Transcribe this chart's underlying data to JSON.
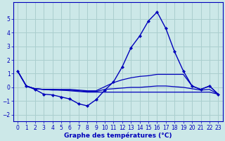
{
  "xlabel": "Graphe des températures (°C)",
  "background_color": "#cce8e8",
  "grid_color": "#aacece",
  "line_color": "#0000bb",
  "hours": [
    0,
    1,
    2,
    3,
    4,
    5,
    6,
    7,
    8,
    9,
    10,
    11,
    12,
    13,
    14,
    15,
    16,
    17,
    18,
    19,
    20,
    21,
    22,
    23
  ],
  "temp_main": [
    1.2,
    0.1,
    -0.15,
    -0.5,
    -0.55,
    -0.7,
    -0.85,
    -1.2,
    -1.35,
    -0.9,
    -0.2,
    0.4,
    1.5,
    2.9,
    3.75,
    4.85,
    5.5,
    4.3,
    2.6,
    1.2,
    0.1,
    -0.15,
    0.1,
    -0.5
  ],
  "temp_line2": [
    1.2,
    0.1,
    -0.1,
    -0.15,
    -0.15,
    -0.15,
    -0.15,
    -0.2,
    -0.25,
    -0.25,
    0.05,
    0.35,
    0.55,
    0.7,
    0.8,
    0.85,
    0.95,
    0.95,
    0.95,
    0.95,
    0.1,
    -0.15,
    0.1,
    -0.5
  ],
  "temp_line3": [
    1.2,
    0.1,
    -0.1,
    -0.15,
    -0.15,
    -0.2,
    -0.2,
    -0.25,
    -0.3,
    -0.3,
    -0.15,
    -0.1,
    -0.05,
    -0.0,
    0.0,
    0.05,
    0.1,
    0.1,
    0.05,
    0.0,
    -0.1,
    -0.2,
    -0.15,
    -0.5
  ],
  "temp_line4": [
    1.2,
    0.1,
    -0.1,
    -0.15,
    -0.2,
    -0.2,
    -0.25,
    -0.3,
    -0.35,
    -0.35,
    -0.35,
    -0.35,
    -0.35,
    -0.35,
    -0.35,
    -0.35,
    -0.35,
    -0.35,
    -0.35,
    -0.35,
    -0.35,
    -0.35,
    -0.35,
    -0.5
  ],
  "ylim": [
    -2.5,
    6.2
  ],
  "xlim": [
    -0.5,
    23.5
  ],
  "yticks": [
    -2,
    -1,
    0,
    1,
    2,
    3,
    4,
    5
  ],
  "xticks": [
    0,
    1,
    2,
    3,
    4,
    5,
    6,
    7,
    8,
    9,
    10,
    11,
    12,
    13,
    14,
    15,
    16,
    17,
    18,
    19,
    20,
    21,
    22,
    23
  ]
}
